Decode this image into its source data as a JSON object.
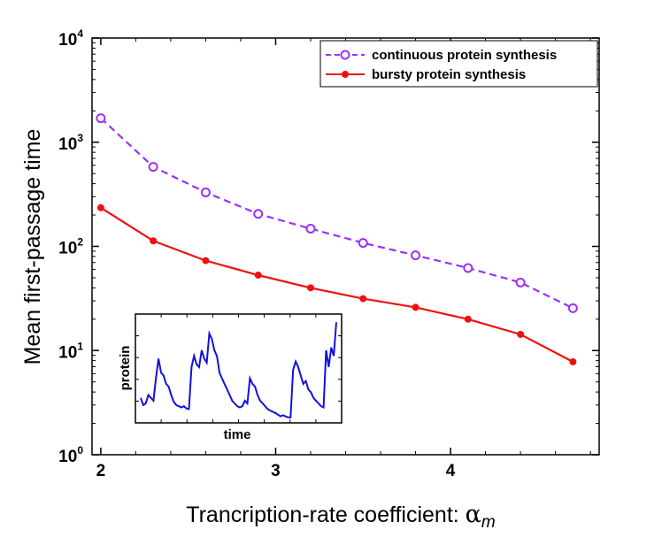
{
  "chart_data": {
    "type": "line",
    "title": "",
    "xlabel": "Trancription-rate coefficient: ",
    "xlabel_symbol": "α",
    "xlabel_subscript": "m",
    "ylabel": "Mean first-passage time",
    "y_scale": "log",
    "xlim": [
      1.95,
      4.85
    ],
    "ylim": [
      1,
      10000
    ],
    "x_ticks": [
      2,
      3,
      4
    ],
    "x_tick_labels": [
      "2",
      "3",
      "4"
    ],
    "y_ticks": [
      1,
      10,
      100,
      1000,
      10000
    ],
    "y_tick_base": "10",
    "y_tick_exponents": [
      "0",
      "1",
      "2",
      "3",
      "4"
    ],
    "legend_position": "top-right",
    "series": [
      {
        "name": "continuous protein synthesis",
        "color": "#9b30ff",
        "style": "dashed",
        "marker": "open-circle",
        "x": [
          2.0,
          2.3,
          2.6,
          2.9,
          3.2,
          3.5,
          3.8,
          4.1,
          4.4,
          4.7
        ],
        "y": [
          1700,
          580,
          330,
          205,
          148,
          108,
          82,
          62,
          45,
          25.5
        ]
      },
      {
        "name": "bursty protein synthesis",
        "color": "#ee1111",
        "style": "solid",
        "marker": "filled-circle",
        "x": [
          2.0,
          2.3,
          2.6,
          2.9,
          3.2,
          3.5,
          3.8,
          4.1,
          4.4,
          4.7
        ],
        "y": [
          235,
          113,
          73,
          53,
          40,
          31.5,
          26,
          20,
          14.3,
          7.8
        ]
      }
    ],
    "inset": {
      "xlabel": "time",
      "ylabel": "protein",
      "color": "#1111dd",
      "values": [
        4.5,
        3.2,
        3.5,
        5,
        4.5,
        4,
        8,
        11.5,
        9,
        8.5,
        7,
        6.5,
        5,
        3.8,
        3.2,
        3,
        2.8,
        3,
        2.6,
        2.5,
        10,
        12,
        10.5,
        10,
        13,
        11.5,
        10.8,
        16,
        15,
        13,
        12,
        9,
        8,
        7,
        6,
        5,
        4,
        3.5,
        3,
        2.8,
        3,
        4,
        3.5,
        8,
        7,
        6.5,
        5,
        4,
        3.5,
        3,
        2.5,
        2.2,
        2,
        1.8,
        1.5,
        1.2,
        1.4,
        1.2,
        1,
        1,
        9.5,
        11,
        10,
        8.5,
        7,
        7.5,
        6,
        5.5,
        4.5,
        4,
        3.5,
        3,
        2.8,
        13,
        10,
        13.5,
        12,
        18
      ]
    }
  }
}
